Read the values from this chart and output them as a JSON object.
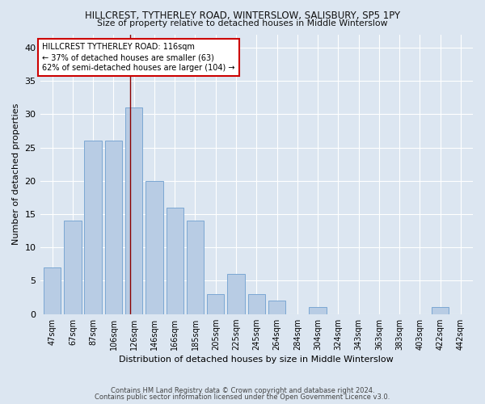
{
  "title": "HILLCREST, TYTHERLEY ROAD, WINTERSLOW, SALISBURY, SP5 1PY",
  "subtitle": "Size of property relative to detached houses in Middle Winterslow",
  "xlabel": "Distribution of detached houses by size in Middle Winterslow",
  "ylabel": "Number of detached properties",
  "footnote1": "Contains HM Land Registry data © Crown copyright and database right 2024.",
  "footnote2": "Contains public sector information licensed under the Open Government Licence v3.0.",
  "bar_labels": [
    "47sqm",
    "67sqm",
    "87sqm",
    "106sqm",
    "126sqm",
    "146sqm",
    "166sqm",
    "185sqm",
    "205sqm",
    "225sqm",
    "245sqm",
    "264sqm",
    "284sqm",
    "304sqm",
    "324sqm",
    "343sqm",
    "363sqm",
    "383sqm",
    "403sqm",
    "422sqm",
    "442sqm"
  ],
  "bar_values": [
    7,
    14,
    26,
    26,
    31,
    20,
    16,
    14,
    3,
    6,
    3,
    2,
    0,
    1,
    0,
    0,
    0,
    0,
    0,
    1,
    0
  ],
  "bar_color": "#b8cce4",
  "bar_edge_color": "#7ba7d3",
  "background_color": "#dce6f1",
  "plot_bg_color": "#dce6f1",
  "grid_color": "#ffffff",
  "vline_x": 3.8,
  "vline_color": "#8b0000",
  "annotation_title": "HILLCREST TYTHERLEY ROAD: 116sqm",
  "annotation_line1": "← 37% of detached houses are smaller (63)",
  "annotation_line2": "62% of semi-detached houses are larger (104) →",
  "annotation_box_color": "#ffffff",
  "annotation_border_color": "#cc0000",
  "ylim": [
    0,
    42
  ],
  "yticks": [
    0,
    5,
    10,
    15,
    20,
    25,
    30,
    35,
    40
  ]
}
